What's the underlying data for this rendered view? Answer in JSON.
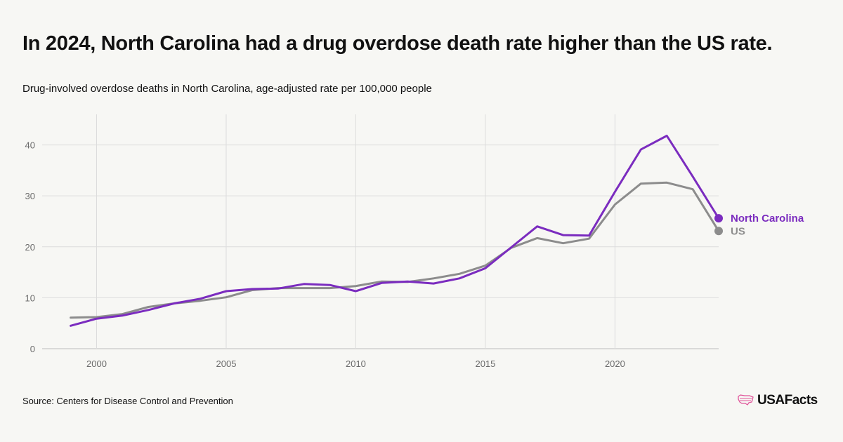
{
  "title": "In 2024, North Carolina had a drug overdose death rate higher than the US rate.",
  "subtitle": "Drug-involved overdose deaths in North Carolina, age-adjusted rate per 100,000 people",
  "source": "Source: Centers for Disease Control and Prevention",
  "brand": {
    "name": "USAFacts",
    "icon": "us-map-icon",
    "icon_color": "#e0559a"
  },
  "chart_data": {
    "type": "line",
    "x": [
      1999,
      2000,
      2001,
      2002,
      2003,
      2004,
      2005,
      2006,
      2007,
      2008,
      2009,
      2010,
      2011,
      2012,
      2013,
      2014,
      2015,
      2016,
      2017,
      2018,
      2019,
      2020,
      2021,
      2022,
      2023,
      2024
    ],
    "series": [
      {
        "name": "North Carolina",
        "color": "#7b2cbf",
        "values": [
          4.5,
          5.9,
          6.5,
          7.6,
          8.9,
          9.8,
          11.3,
          11.7,
          11.8,
          12.7,
          12.5,
          11.3,
          12.9,
          13.2,
          12.8,
          13.8,
          15.8,
          19.9,
          24.0,
          22.3,
          22.2,
          30.8,
          39.1,
          41.8,
          33.8,
          25.6
        ]
      },
      {
        "name": "US",
        "color": "#8c8c8c",
        "values": [
          6.1,
          6.2,
          6.8,
          8.2,
          8.9,
          9.4,
          10.1,
          11.5,
          11.9,
          11.9,
          11.9,
          12.3,
          13.2,
          13.1,
          13.8,
          14.7,
          16.3,
          19.8,
          21.7,
          20.7,
          21.6,
          28.3,
          32.4,
          32.6,
          31.3,
          23.1
        ]
      }
    ],
    "x_ticks": [
      2000,
      2005,
      2010,
      2015,
      2020
    ],
    "x_tick_labels": [
      "2000",
      "2005",
      "2010",
      "2015",
      "2020"
    ],
    "y_ticks": [
      0,
      10,
      20,
      30,
      40
    ],
    "y_tick_labels": [
      "0",
      "10",
      "20",
      "30",
      "40"
    ],
    "xlim": [
      1997.9,
      2024
    ],
    "ylim": [
      0,
      46
    ],
    "grid": true,
    "legend": "direct labels at line ends"
  }
}
